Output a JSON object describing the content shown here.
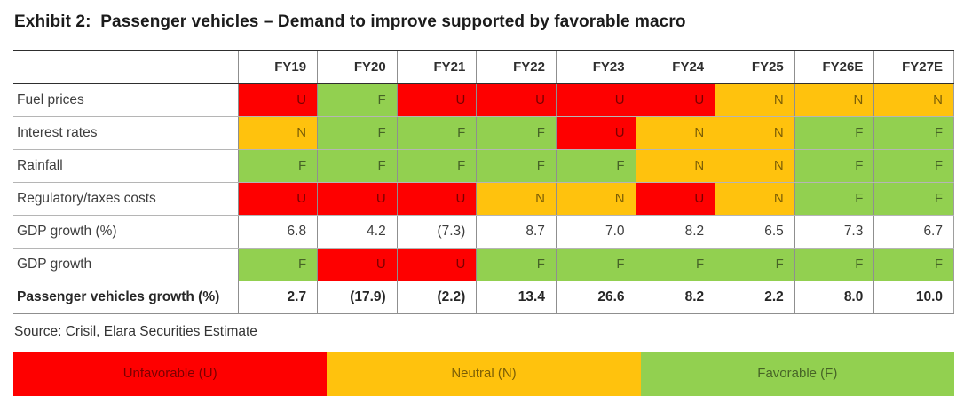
{
  "title": "Exhibit 2:  Passenger vehicles – Demand to improve supported by favorable macro",
  "source": "Source: Crisil, Elara Securities Estimate",
  "colors": {
    "unfavorable": "#FE0000",
    "neutral": "#FFC20D",
    "favorable": "#92D050"
  },
  "legend": [
    {
      "label": "Unfavorable (U)",
      "key": "unfavorable"
    },
    {
      "label": "Neutral (N)",
      "key": "neutral"
    },
    {
      "label": "Favorable (F)",
      "key": "favorable"
    }
  ],
  "chart_data": {
    "type": "table",
    "title": "Exhibit 2: Passenger vehicles – Demand to improve supported by favorable macro",
    "columns": [
      "",
      "FY19",
      "FY20",
      "FY21",
      "FY22",
      "FY23",
      "FY24",
      "FY25",
      "FY26E",
      "FY27E"
    ],
    "status_color_map": {
      "U": "unfavorable",
      "N": "neutral",
      "F": "favorable"
    },
    "rows": [
      {
        "label": "Fuel prices",
        "bold": false,
        "values": [
          "U",
          "F",
          "U",
          "U",
          "U",
          "U",
          "N",
          "N",
          "N"
        ]
      },
      {
        "label": "Interest rates",
        "bold": false,
        "values": [
          "N",
          "F",
          "F",
          "F",
          "U",
          "N",
          "N",
          "F",
          "F"
        ]
      },
      {
        "label": "Rainfall",
        "bold": false,
        "values": [
          "F",
          "F",
          "F",
          "F",
          "F",
          "N",
          "N",
          "F",
          "F"
        ]
      },
      {
        "label": "Regulatory/taxes costs",
        "bold": false,
        "values": [
          "U",
          "U",
          "U",
          "N",
          "N",
          "U",
          "N",
          "F",
          "F"
        ]
      },
      {
        "label": "GDP growth (%)",
        "bold": false,
        "values": [
          "6.8",
          "4.2",
          "(7.3)",
          "8.7",
          "7.0",
          "8.2",
          "6.5",
          "7.3",
          "6.7"
        ]
      },
      {
        "label": "GDP growth",
        "bold": false,
        "values": [
          "F",
          "U",
          "U",
          "F",
          "F",
          "F",
          "F",
          "F",
          "F"
        ]
      },
      {
        "label": "Passenger vehicles growth (%)",
        "bold": true,
        "values": [
          "2.7",
          "(17.9)",
          "(2.2)",
          "13.4",
          "26.6",
          "8.2",
          "2.2",
          "8.0",
          "10.0"
        ]
      }
    ]
  }
}
